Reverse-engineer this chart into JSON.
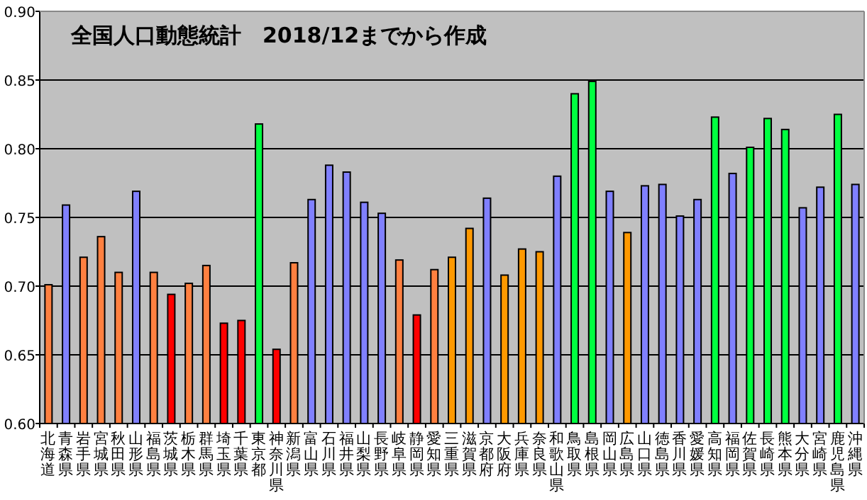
{
  "chart_data": {
    "type": "bar",
    "title": "全国人口動態統計　2018/12までから作成",
    "categories": [
      "北海道",
      "青森県",
      "岩手県",
      "宮城県",
      "秋田県",
      "山形県",
      "福島県",
      "茨城県",
      "栃木県",
      "群馬県",
      "埼玉県",
      "千葉県",
      "東京都",
      "神奈川県",
      "新潟県",
      "富山県",
      "石川県",
      "福井県",
      "山梨県",
      "長野県",
      "岐阜県",
      "静岡県",
      "愛知県",
      "三重県",
      "滋賀県",
      "京都府",
      "大阪府",
      "兵庫県",
      "奈良県",
      "和歌山県",
      "鳥取県",
      "島根県",
      "岡山県",
      "広島県",
      "山口県",
      "徳島県",
      "香川県",
      "愛媛県",
      "高知県",
      "福岡県",
      "佐賀県",
      "長崎県",
      "熊本県",
      "大分県",
      "宮崎県",
      "鹿児島県",
      "沖縄県"
    ],
    "values": [
      0.701,
      0.759,
      0.721,
      0.736,
      0.71,
      0.769,
      0.71,
      0.694,
      0.702,
      0.715,
      0.673,
      0.675,
      0.818,
      0.654,
      0.717,
      0.763,
      0.788,
      0.783,
      0.761,
      0.753,
      0.719,
      0.679,
      0.712,
      0.721,
      0.742,
      0.764,
      0.708,
      0.727,
      0.725,
      0.78,
      0.84,
      0.849,
      0.769,
      0.739,
      0.773,
      0.774,
      0.751,
      0.763,
      0.823,
      0.782,
      0.801,
      0.822,
      0.814,
      0.757,
      0.772,
      0.825,
      0.774
    ],
    "colors": [
      "#ff8040",
      "#8080ff",
      "#ff8040",
      "#ff8040",
      "#ff8040",
      "#8080ff",
      "#ff8040",
      "#ff0000",
      "#ff8040",
      "#ff8040",
      "#ff0000",
      "#ff0000",
      "#00ff40",
      "#ff0000",
      "#ff8040",
      "#8080ff",
      "#8080ff",
      "#8080ff",
      "#8080ff",
      "#8080ff",
      "#ff8040",
      "#ff0000",
      "#ff8040",
      "#ff9900",
      "#ff9900",
      "#8080ff",
      "#ff9900",
      "#ff9900",
      "#ff9900",
      "#8080ff",
      "#00ff40",
      "#00ff40",
      "#8080ff",
      "#ff9900",
      "#8080ff",
      "#8080ff",
      "#8080ff",
      "#8080ff",
      "#00ff40",
      "#8080ff",
      "#00ff40",
      "#00ff40",
      "#00ff40",
      "#8080ff",
      "#8080ff",
      "#00ff40",
      "#8080ff"
    ],
    "ylim": [
      0.6,
      0.9
    ],
    "yticks": [
      {
        "value": 0.6,
        "label": "0.60"
      },
      {
        "value": 0.65,
        "label": "0.65"
      },
      {
        "value": 0.7,
        "label": "0.70"
      },
      {
        "value": 0.75,
        "label": "0.75"
      },
      {
        "value": 0.8,
        "label": "0.80"
      },
      {
        "value": 0.85,
        "label": "0.85"
      },
      {
        "value": 0.9,
        "label": "0.90"
      }
    ],
    "grid": "y"
  }
}
